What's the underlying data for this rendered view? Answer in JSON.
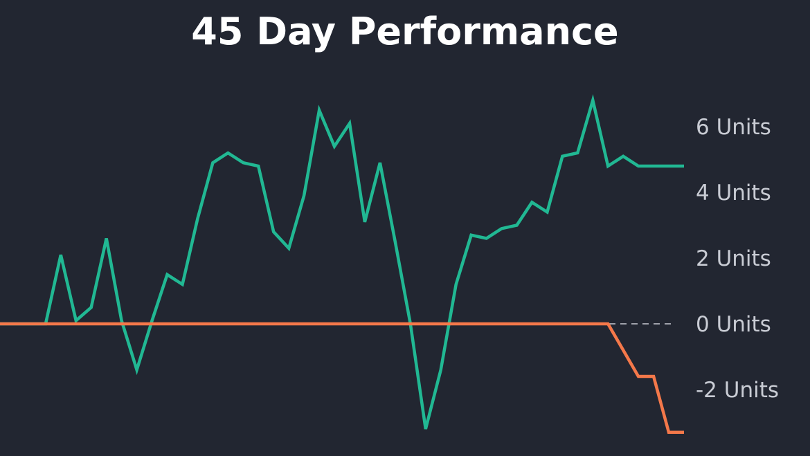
{
  "chart_data": {
    "type": "line",
    "title": "45 Day Performance",
    "xlabel": "",
    "ylabel": "",
    "x": [
      0,
      1,
      2,
      3,
      4,
      5,
      6,
      7,
      8,
      9,
      10,
      11,
      12,
      13,
      14,
      15,
      16,
      17,
      18,
      19,
      20,
      21,
      22,
      23,
      24,
      25,
      26,
      27,
      28,
      29,
      30,
      31,
      32,
      33,
      34,
      35,
      36,
      37,
      38,
      39,
      40,
      41,
      42,
      43,
      44,
      45
    ],
    "y_ticks": [
      {
        "value": 6,
        "label": "6 Units"
      },
      {
        "value": 4,
        "label": "4 Units"
      },
      {
        "value": 2,
        "label": "2 Units"
      },
      {
        "value": 0,
        "label": "0 Units"
      },
      {
        "value": -2,
        "label": "-2 Units"
      }
    ],
    "ylim": [
      -3.9,
      7.2
    ],
    "reference_line": {
      "value": 0,
      "style": "dashed"
    },
    "grid": false,
    "legend": false,
    "series": [
      {
        "color": "#21b893",
        "values": [
          0,
          0,
          0,
          0,
          2.1,
          0.1,
          0.5,
          2.6,
          0.1,
          -1.4,
          0.1,
          1.5,
          1.2,
          3.2,
          4.9,
          5.2,
          4.9,
          4.8,
          2.8,
          2.3,
          3.9,
          6.5,
          5.4,
          6.1,
          3.1,
          4.9,
          2.5,
          0,
          -3.2,
          -1.4,
          1.2,
          2.7,
          2.6,
          2.9,
          3.0,
          3.7,
          3.4,
          5.1,
          5.2,
          6.8,
          4.8,
          5.1,
          4.8,
          4.8,
          4.8,
          4.8
        ]
      },
      {
        "color": "#f4784a",
        "values": [
          0,
          0,
          0,
          0,
          0,
          0,
          0,
          0,
          0,
          0,
          0,
          0,
          0,
          0,
          0,
          0,
          0,
          0,
          0,
          0,
          0,
          0,
          0,
          0,
          0,
          0,
          0,
          0,
          0,
          0,
          0,
          0,
          0,
          0,
          0,
          0,
          0,
          0,
          0,
          0,
          0,
          -0.8,
          -1.6,
          -1.6,
          -3.3,
          -3.3
        ]
      }
    ],
    "dashed_line_color": "#c9ccd4"
  }
}
